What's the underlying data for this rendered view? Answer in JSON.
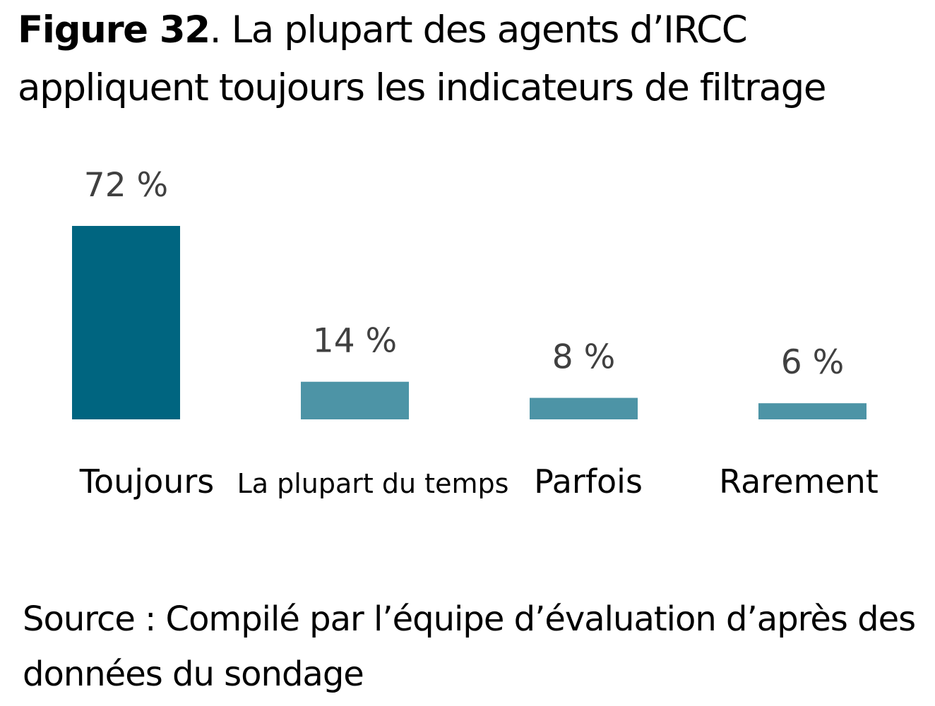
{
  "title": {
    "prefix": "Figure 32",
    "text": ". La plupart des agents d’IRCC appliquent toujours les indicateurs de filtrage"
  },
  "source": "Source : Compilé par l’équipe d’évaluation d’après des données du sondage",
  "chart_data": {
    "type": "bar",
    "title": "Figure 32. La plupart des agents d’IRCC appliquent toujours les indicateurs de filtrage",
    "xlabel": "",
    "ylabel": "",
    "categories": [
      "Toujours",
      "La plupart du temps",
      "Parfois",
      "Rarement"
    ],
    "values": [
      72,
      14,
      8,
      6
    ],
    "data_labels": [
      "72 %",
      "14 %",
      "8 %",
      "6 %"
    ],
    "colors": [
      "#006580",
      "#4d94a6",
      "#4d94a6",
      "#4d94a6"
    ],
    "ylim": [
      0,
      72
    ],
    "grid": false,
    "legend": "none"
  }
}
